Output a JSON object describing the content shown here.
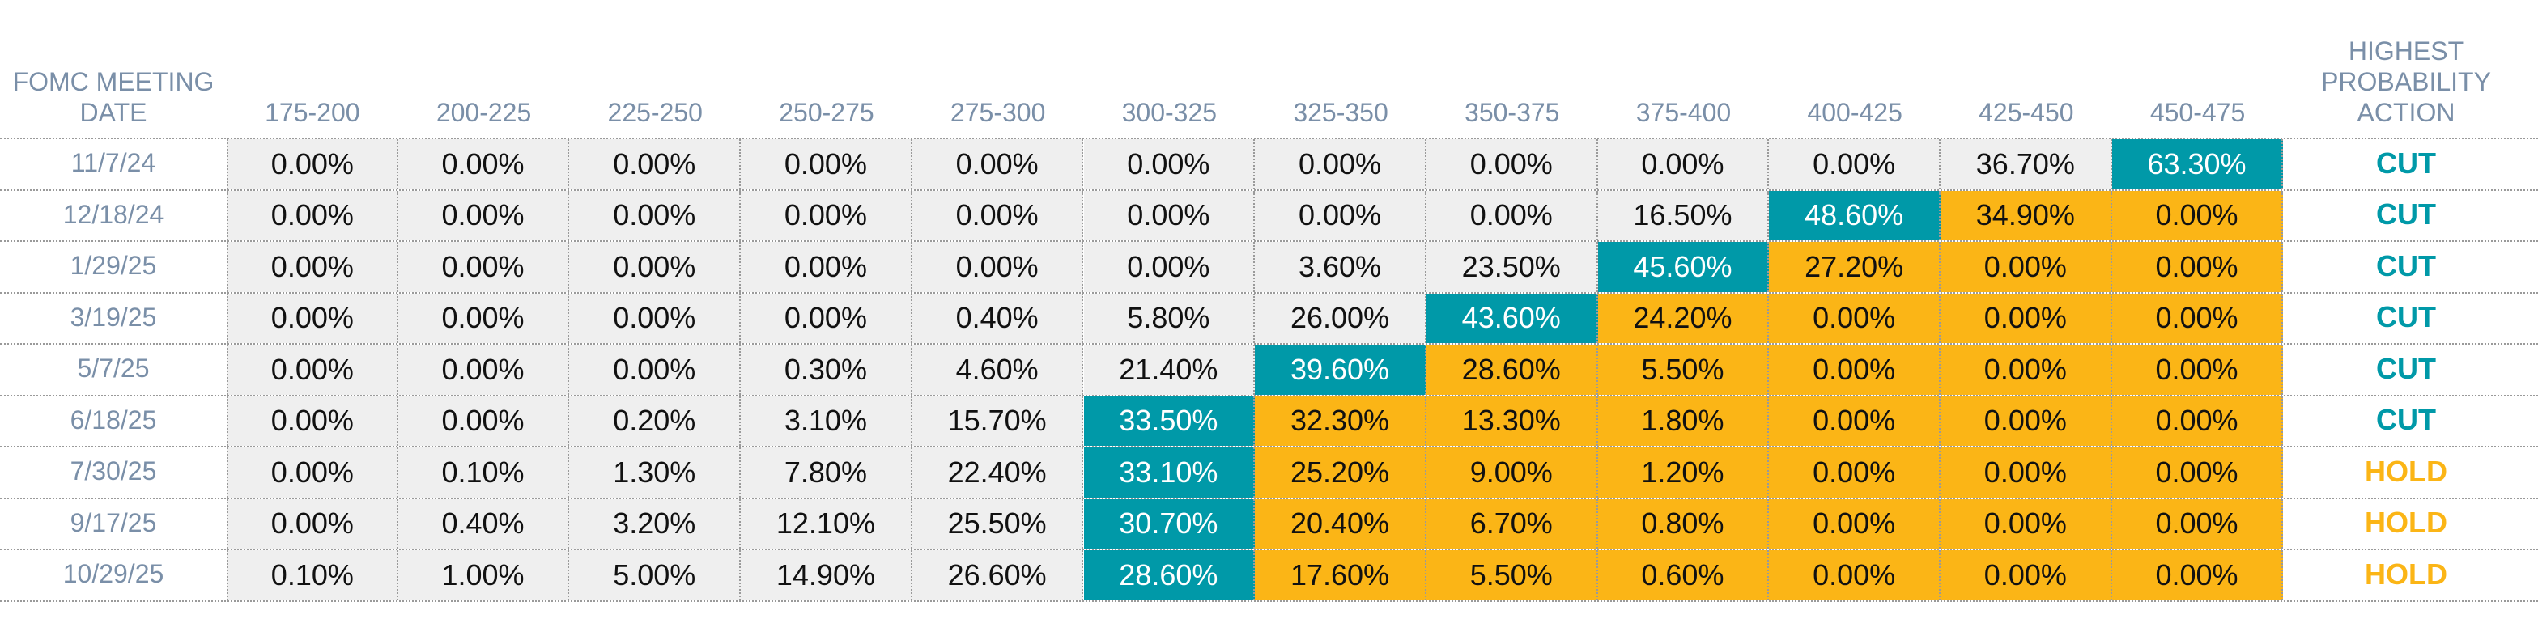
{
  "chart_data": {
    "type": "table",
    "columns": [
      "FOMC MEETING\nDATE",
      "175-200",
      "200-225",
      "225-250",
      "250-275",
      "275-300",
      "300-325",
      "325-350",
      "350-375",
      "375-400",
      "400-425",
      "425-450",
      "450-475",
      "HIGHEST\nPROBABILITY\nACTION"
    ],
    "rows": [
      {
        "date": "11/7/24",
        "values": [
          "0.00%",
          "0.00%",
          "0.00%",
          "0.00%",
          "0.00%",
          "0.00%",
          "0.00%",
          "0.00%",
          "0.00%",
          "0.00%",
          "36.70%",
          "63.30%"
        ],
        "action": "CUT"
      },
      {
        "date": "12/18/24",
        "values": [
          "0.00%",
          "0.00%",
          "0.00%",
          "0.00%",
          "0.00%",
          "0.00%",
          "0.00%",
          "0.00%",
          "16.50%",
          "48.60%",
          "34.90%",
          "0.00%"
        ],
        "action": "CUT"
      },
      {
        "date": "1/29/25",
        "values": [
          "0.00%",
          "0.00%",
          "0.00%",
          "0.00%",
          "0.00%",
          "0.00%",
          "3.60%",
          "23.50%",
          "45.60%",
          "27.20%",
          "0.00%",
          "0.00%"
        ],
        "action": "CUT"
      },
      {
        "date": "3/19/25",
        "values": [
          "0.00%",
          "0.00%",
          "0.00%",
          "0.00%",
          "0.40%",
          "5.80%",
          "26.00%",
          "43.60%",
          "24.20%",
          "0.00%",
          "0.00%",
          "0.00%"
        ],
        "action": "CUT"
      },
      {
        "date": "5/7/25",
        "values": [
          "0.00%",
          "0.00%",
          "0.00%",
          "0.30%",
          "4.60%",
          "21.40%",
          "39.60%",
          "28.60%",
          "5.50%",
          "0.00%",
          "0.00%",
          "0.00%"
        ],
        "action": "CUT"
      },
      {
        "date": "6/18/25",
        "values": [
          "0.00%",
          "0.00%",
          "0.20%",
          "3.10%",
          "15.70%",
          "33.50%",
          "32.30%",
          "13.30%",
          "1.80%",
          "0.00%",
          "0.00%",
          "0.00%"
        ],
        "action": "CUT"
      },
      {
        "date": "7/30/25",
        "values": [
          "0.00%",
          "0.10%",
          "1.30%",
          "7.80%",
          "22.40%",
          "33.10%",
          "25.20%",
          "9.00%",
          "1.20%",
          "0.00%",
          "0.00%",
          "0.00%"
        ],
        "action": "HOLD"
      },
      {
        "date": "9/17/25",
        "values": [
          "0.00%",
          "0.40%",
          "3.20%",
          "12.10%",
          "25.50%",
          "30.70%",
          "20.40%",
          "6.70%",
          "0.80%",
          "0.00%",
          "0.00%",
          "0.00%"
        ],
        "action": "HOLD"
      },
      {
        "date": "10/29/25",
        "values": [
          "0.10%",
          "1.00%",
          "5.00%",
          "14.90%",
          "26.60%",
          "28.60%",
          "17.60%",
          "5.50%",
          "0.60%",
          "0.00%",
          "0.00%",
          "0.00%"
        ],
        "action": "HOLD"
      }
    ],
    "highlight_teal": [
      11,
      9,
      8,
      7,
      6,
      5,
      5,
      5,
      5
    ],
    "highlight_orange_from": [
      12,
      10,
      9,
      8,
      7,
      6,
      6,
      6,
      6
    ],
    "colors": {
      "teal": "#0099a8",
      "orange": "#fbb516",
      "gray": "#efefef",
      "header_text": "#7a8fa8",
      "cut": "#0099a8",
      "hold": "#fbb516"
    }
  }
}
